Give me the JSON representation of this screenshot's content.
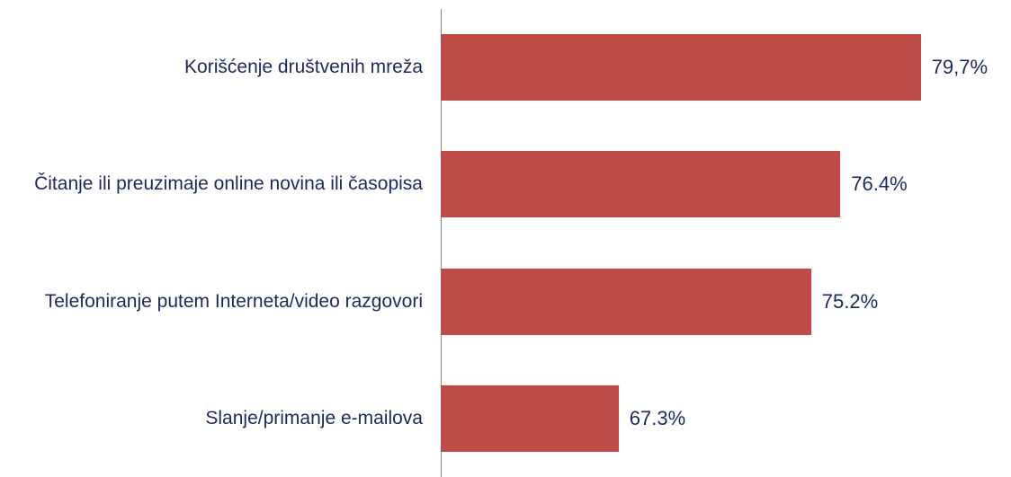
{
  "chart_data": {
    "type": "hbar",
    "categories": [
      "Korišćenje društvenih mreža",
      "Čitanje ili preuzimaje online novina ili časopisa",
      "Telefoniranje putem Interneta/video razgovori",
      "Slanje/primanje e-mailova"
    ],
    "values": [
      79.7,
      76.4,
      75.2,
      67.3
    ],
    "value_labels": [
      "79,7%",
      "76.4%",
      "75.2%",
      "67.3%"
    ],
    "color": "#be4b48",
    "xlim": [
      60,
      82
    ]
  }
}
